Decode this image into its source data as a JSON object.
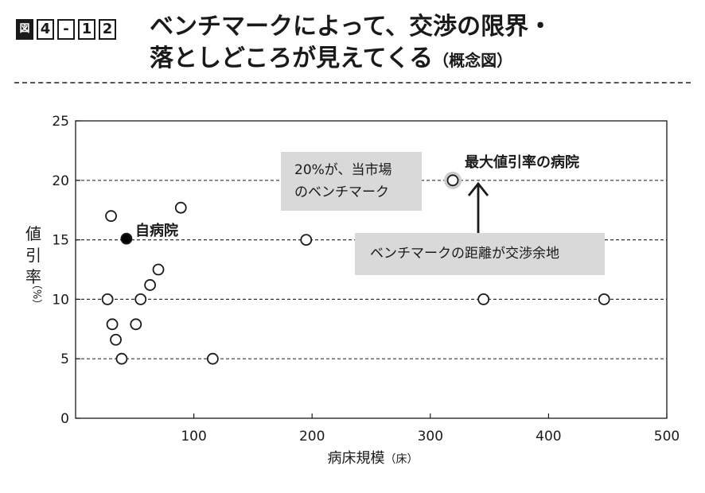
{
  "figure": {
    "icon": "figure-icon",
    "icon_label": "図",
    "chapter": "4",
    "dash": "-",
    "num1": "1",
    "num2": "2",
    "title_line1": "ベンチマークによって、交渉の限界・",
    "title_line2": "落としどころが見えてくる",
    "title_suffix": "（概念図）"
  },
  "chart_data": {
    "type": "scatter",
    "title": "",
    "xlabel": "病床規模",
    "xlabel_unit": "（床）",
    "ylabel": "値引率",
    "ylabel_unit": "（%）",
    "xlim": [
      0,
      500
    ],
    "ylim": [
      0,
      25
    ],
    "xticks": [
      "100",
      "200",
      "300",
      "400",
      "500"
    ],
    "xtick_values": [
      100,
      200,
      300,
      400,
      500
    ],
    "yticks": [
      "0",
      "5",
      "10",
      "15",
      "20",
      "25"
    ],
    "ytick_values": [
      0,
      5,
      10,
      15,
      20,
      25
    ],
    "grid": "dashed horizontal at 5, 10, 15, 20",
    "points": [
      {
        "x": 30,
        "y": 17
      },
      {
        "x": 89,
        "y": 17.7
      },
      {
        "x": 70,
        "y": 12.5
      },
      {
        "x": 63,
        "y": 11.2
      },
      {
        "x": 27,
        "y": 10
      },
      {
        "x": 55,
        "y": 10
      },
      {
        "x": 31,
        "y": 7.9
      },
      {
        "x": 51,
        "y": 7.9
      },
      {
        "x": 34,
        "y": 6.6
      },
      {
        "x": 39,
        "y": 5
      },
      {
        "x": 116,
        "y": 5
      },
      {
        "x": 195,
        "y": 15
      },
      {
        "x": 345,
        "y": 10
      },
      {
        "x": 447,
        "y": 10
      }
    ],
    "own_hospital": {
      "x": 43,
      "y": 15.1,
      "label": "自病院"
    },
    "max_hospital": {
      "x": 319,
      "y": 20,
      "label": "最大値引率の病院"
    },
    "annotations": {
      "benchmark_line1": "20%が、当市場",
      "benchmark_line2": "のベンチマーク",
      "distance": "ベンチマークの距離が交渉余地"
    }
  },
  "colors": {
    "marker_open_fill": "#ffffff",
    "marker_stroke": "#1a1a1a",
    "own_marker_fill": "#000000",
    "note_bg": "#d9d9d9",
    "highlight_ring": "#cccccc"
  }
}
